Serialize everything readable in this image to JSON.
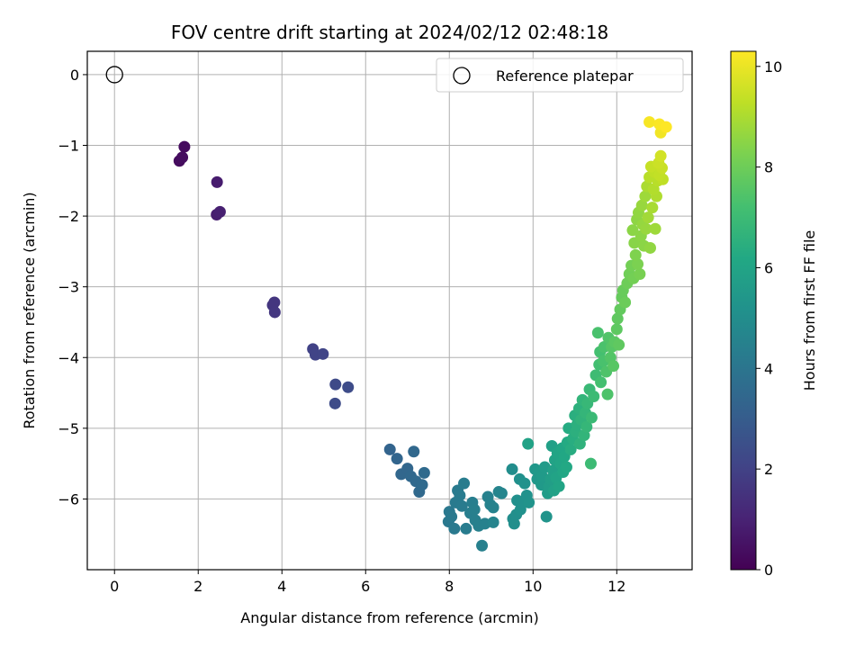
{
  "chart_data": {
    "type": "scatter",
    "title": "FOV centre drift starting at 2024/02/12 02:48:18",
    "xlabel": "Angular distance from reference (arcmin)",
    "ylabel": "Rotation from reference (arcmin)",
    "xlim": [
      -0.65,
      13.8
    ],
    "ylim": [
      -7.0,
      0.33
    ],
    "xticks": [
      0,
      2,
      4,
      6,
      8,
      10,
      12
    ],
    "yticks": [
      0,
      -1,
      -2,
      -3,
      -4,
      -5,
      -6
    ],
    "grid": true,
    "colormap": "viridis",
    "colorbar": {
      "label": "Hours from first FF file",
      "range": [
        0,
        10.3
      ],
      "ticks": [
        0,
        2,
        4,
        6,
        8,
        10
      ]
    },
    "legend": {
      "position": "top-right",
      "entries": [
        {
          "label": "Reference platepar",
          "marker": "open-circle"
        }
      ]
    },
    "reference_point": {
      "x": 0,
      "y": 0
    },
    "points": [
      {
        "x": 1.67,
        "y": -1.02,
        "c": 0.3
      },
      {
        "x": 1.55,
        "y": -1.22,
        "c": 0.3
      },
      {
        "x": 1.62,
        "y": -1.17,
        "c": 0.35
      },
      {
        "x": 2.45,
        "y": -1.52,
        "c": 0.8
      },
      {
        "x": 2.44,
        "y": -1.98,
        "c": 0.85
      },
      {
        "x": 2.52,
        "y": -1.94,
        "c": 0.9
      },
      {
        "x": 3.78,
        "y": -3.26,
        "c": 1.6
      },
      {
        "x": 3.82,
        "y": -3.22,
        "c": 1.6
      },
      {
        "x": 3.83,
        "y": -3.36,
        "c": 1.65
      },
      {
        "x": 4.74,
        "y": -3.88,
        "c": 2.0
      },
      {
        "x": 4.8,
        "y": -3.96,
        "c": 2.05
      },
      {
        "x": 4.98,
        "y": -3.95,
        "c": 2.1
      },
      {
        "x": 5.28,
        "y": -4.38,
        "c": 2.3
      },
      {
        "x": 5.58,
        "y": -4.42,
        "c": 2.35
      },
      {
        "x": 5.27,
        "y": -4.65,
        "c": 2.35
      },
      {
        "x": 6.58,
        "y": -5.3,
        "c": 3.3
      },
      {
        "x": 6.75,
        "y": -5.43,
        "c": 3.35
      },
      {
        "x": 6.85,
        "y": -5.65,
        "c": 3.4
      },
      {
        "x": 7.0,
        "y": -5.57,
        "c": 3.4
      },
      {
        "x": 7.08,
        "y": -5.68,
        "c": 3.45
      },
      {
        "x": 7.15,
        "y": -5.33,
        "c": 3.45
      },
      {
        "x": 7.2,
        "y": -5.75,
        "c": 3.5
      },
      {
        "x": 7.28,
        "y": -5.9,
        "c": 3.5
      },
      {
        "x": 7.35,
        "y": -5.8,
        "c": 3.55
      },
      {
        "x": 7.4,
        "y": -5.63,
        "c": 3.55
      },
      {
        "x": 7.98,
        "y": -6.32,
        "c": 4.1
      },
      {
        "x": 8.0,
        "y": -6.18,
        "c": 4.1
      },
      {
        "x": 8.05,
        "y": -6.25,
        "c": 4.15
      },
      {
        "x": 8.12,
        "y": -6.42,
        "c": 4.15
      },
      {
        "x": 8.15,
        "y": -6.05,
        "c": 4.2
      },
      {
        "x": 8.2,
        "y": -5.88,
        "c": 4.2
      },
      {
        "x": 8.25,
        "y": -5.95,
        "c": 4.25
      },
      {
        "x": 8.3,
        "y": -6.1,
        "c": 4.25
      },
      {
        "x": 8.35,
        "y": -5.78,
        "c": 4.3
      },
      {
        "x": 8.4,
        "y": -6.42,
        "c": 4.3
      },
      {
        "x": 8.5,
        "y": -6.2,
        "c": 4.35
      },
      {
        "x": 8.55,
        "y": -6.05,
        "c": 4.35
      },
      {
        "x": 8.6,
        "y": -6.15,
        "c": 4.4
      },
      {
        "x": 8.62,
        "y": -6.3,
        "c": 4.4
      },
      {
        "x": 8.7,
        "y": -6.38,
        "c": 4.45
      },
      {
        "x": 8.78,
        "y": -6.66,
        "c": 4.45
      },
      {
        "x": 8.85,
        "y": -6.35,
        "c": 4.5
      },
      {
        "x": 8.92,
        "y": -5.97,
        "c": 4.5
      },
      {
        "x": 8.98,
        "y": -6.08,
        "c": 4.55
      },
      {
        "x": 9.05,
        "y": -6.12,
        "c": 4.55
      },
      {
        "x": 9.05,
        "y": -6.33,
        "c": 4.6
      },
      {
        "x": 9.18,
        "y": -5.9,
        "c": 4.6
      },
      {
        "x": 9.25,
        "y": -5.92,
        "c": 4.65
      },
      {
        "x": 9.5,
        "y": -5.58,
        "c": 5.0
      },
      {
        "x": 9.52,
        "y": -6.28,
        "c": 5.0
      },
      {
        "x": 9.55,
        "y": -6.35,
        "c": 5.05
      },
      {
        "x": 9.6,
        "y": -6.22,
        "c": 5.05
      },
      {
        "x": 9.62,
        "y": -6.02,
        "c": 5.1
      },
      {
        "x": 9.68,
        "y": -5.72,
        "c": 5.1
      },
      {
        "x": 9.7,
        "y": -6.15,
        "c": 5.15
      },
      {
        "x": 9.75,
        "y": -6.05,
        "c": 5.15
      },
      {
        "x": 9.8,
        "y": -5.78,
        "c": 5.2
      },
      {
        "x": 9.85,
        "y": -5.95,
        "c": 5.2
      },
      {
        "x": 9.88,
        "y": -5.22,
        "c": 5.9
      },
      {
        "x": 9.9,
        "y": -6.05,
        "c": 5.25
      },
      {
        "x": 10.05,
        "y": -5.58,
        "c": 5.4
      },
      {
        "x": 10.1,
        "y": -5.72,
        "c": 5.45
      },
      {
        "x": 10.15,
        "y": -5.62,
        "c": 5.5
      },
      {
        "x": 10.2,
        "y": -5.8,
        "c": 5.5
      },
      {
        "x": 10.22,
        "y": -5.68,
        "c": 5.55
      },
      {
        "x": 10.28,
        "y": -5.55,
        "c": 5.6
      },
      {
        "x": 10.32,
        "y": -6.25,
        "c": 5.3
      },
      {
        "x": 10.35,
        "y": -5.92,
        "c": 5.65
      },
      {
        "x": 10.38,
        "y": -5.82,
        "c": 5.7
      },
      {
        "x": 10.42,
        "y": -5.72,
        "c": 5.75
      },
      {
        "x": 10.45,
        "y": -5.25,
        "c": 5.8
      },
      {
        "x": 10.48,
        "y": -5.6,
        "c": 5.8
      },
      {
        "x": 10.5,
        "y": -5.88,
        "c": 5.85
      },
      {
        "x": 10.52,
        "y": -5.45,
        "c": 5.9
      },
      {
        "x": 10.55,
        "y": -5.7,
        "c": 5.95
      },
      {
        "x": 10.58,
        "y": -5.35,
        "c": 6.0
      },
      {
        "x": 10.62,
        "y": -5.82,
        "c": 6.0
      },
      {
        "x": 10.65,
        "y": -5.5,
        "c": 6.05
      },
      {
        "x": 10.7,
        "y": -5.28,
        "c": 6.1
      },
      {
        "x": 10.72,
        "y": -5.62,
        "c": 6.1
      },
      {
        "x": 10.75,
        "y": -5.4,
        "c": 6.15
      },
      {
        "x": 10.8,
        "y": -5.55,
        "c": 6.2
      },
      {
        "x": 10.82,
        "y": -5.2,
        "c": 6.25
      },
      {
        "x": 10.85,
        "y": -5.0,
        "c": 6.3
      },
      {
        "x": 10.9,
        "y": -5.3,
        "c": 6.35
      },
      {
        "x": 10.95,
        "y": -5.15,
        "c": 6.4
      },
      {
        "x": 11.0,
        "y": -4.82,
        "c": 6.45
      },
      {
        "x": 11.02,
        "y": -5.05,
        "c": 6.5
      },
      {
        "x": 11.05,
        "y": -4.95,
        "c": 6.5
      },
      {
        "x": 11.1,
        "y": -4.72,
        "c": 6.55
      },
      {
        "x": 11.12,
        "y": -5.22,
        "c": 6.6
      },
      {
        "x": 11.15,
        "y": -4.88,
        "c": 6.65
      },
      {
        "x": 11.18,
        "y": -4.6,
        "c": 6.7
      },
      {
        "x": 11.22,
        "y": -5.1,
        "c": 6.7
      },
      {
        "x": 11.25,
        "y": -4.78,
        "c": 6.75
      },
      {
        "x": 11.28,
        "y": -4.98,
        "c": 6.8
      },
      {
        "x": 11.3,
        "y": -4.65,
        "c": 6.85
      },
      {
        "x": 11.35,
        "y": -4.45,
        "c": 6.9
      },
      {
        "x": 11.38,
        "y": -5.5,
        "c": 7.0
      },
      {
        "x": 11.4,
        "y": -4.85,
        "c": 6.95
      },
      {
        "x": 11.45,
        "y": -4.55,
        "c": 7.0
      },
      {
        "x": 11.5,
        "y": -4.25,
        "c": 7.05
      },
      {
        "x": 11.55,
        "y": -3.65,
        "c": 7.3
      },
      {
        "x": 11.58,
        "y": -4.1,
        "c": 7.15
      },
      {
        "x": 11.6,
        "y": -3.92,
        "c": 7.2
      },
      {
        "x": 11.62,
        "y": -4.35,
        "c": 7.2
      },
      {
        "x": 11.68,
        "y": -4.05,
        "c": 7.3
      },
      {
        "x": 11.7,
        "y": -3.85,
        "c": 7.35
      },
      {
        "x": 11.75,
        "y": -4.2,
        "c": 7.4
      },
      {
        "x": 11.78,
        "y": -4.52,
        "c": 7.4
      },
      {
        "x": 11.8,
        "y": -3.72,
        "c": 7.45
      },
      {
        "x": 11.85,
        "y": -4.0,
        "c": 7.5
      },
      {
        "x": 11.88,
        "y": -3.85,
        "c": 7.55
      },
      {
        "x": 11.92,
        "y": -4.12,
        "c": 7.6
      },
      {
        "x": 11.95,
        "y": -3.78,
        "c": 7.65
      },
      {
        "x": 12.0,
        "y": -3.6,
        "c": 7.7
      },
      {
        "x": 12.02,
        "y": -3.45,
        "c": 7.75
      },
      {
        "x": 12.05,
        "y": -3.82,
        "c": 7.75
      },
      {
        "x": 12.08,
        "y": -3.32,
        "c": 7.8
      },
      {
        "x": 12.12,
        "y": -3.15,
        "c": 7.85
      },
      {
        "x": 12.15,
        "y": -3.05,
        "c": 7.9
      },
      {
        "x": 12.2,
        "y": -3.22,
        "c": 7.95
      },
      {
        "x": 12.25,
        "y": -2.95,
        "c": 8.0
      },
      {
        "x": 12.3,
        "y": -2.82,
        "c": 8.05
      },
      {
        "x": 12.35,
        "y": -2.7,
        "c": 8.1
      },
      {
        "x": 12.38,
        "y": -2.2,
        "c": 8.5
      },
      {
        "x": 12.4,
        "y": -2.88,
        "c": 8.1
      },
      {
        "x": 12.42,
        "y": -2.38,
        "c": 8.45
      },
      {
        "x": 12.45,
        "y": -2.55,
        "c": 8.3
      },
      {
        "x": 12.48,
        "y": -2.05,
        "c": 8.55
      },
      {
        "x": 12.5,
        "y": -2.68,
        "c": 8.25
      },
      {
        "x": 12.52,
        "y": -1.95,
        "c": 8.6
      },
      {
        "x": 12.55,
        "y": -2.82,
        "c": 8.2
      },
      {
        "x": 12.58,
        "y": -2.28,
        "c": 8.5
      },
      {
        "x": 12.6,
        "y": -1.85,
        "c": 8.7
      },
      {
        "x": 12.62,
        "y": -2.12,
        "c": 8.65
      },
      {
        "x": 12.65,
        "y": -2.42,
        "c": 8.5
      },
      {
        "x": 12.68,
        "y": -1.72,
        "c": 8.8
      },
      {
        "x": 12.7,
        "y": -2.18,
        "c": 8.7
      },
      {
        "x": 12.72,
        "y": -1.58,
        "c": 9.0
      },
      {
        "x": 12.75,
        "y": -2.02,
        "c": 8.85
      },
      {
        "x": 12.78,
        "y": -1.45,
        "c": 9.2
      },
      {
        "x": 12.8,
        "y": -2.45,
        "c": 8.6
      },
      {
        "x": 12.82,
        "y": -1.3,
        "c": 9.4
      },
      {
        "x": 12.85,
        "y": -1.88,
        "c": 8.95
      },
      {
        "x": 12.88,
        "y": -1.62,
        "c": 9.1
      },
      {
        "x": 12.9,
        "y": -1.38,
        "c": 9.3
      },
      {
        "x": 12.92,
        "y": -2.18,
        "c": 8.8
      },
      {
        "x": 12.95,
        "y": -1.72,
        "c": 9.05
      },
      {
        "x": 12.98,
        "y": -1.5,
        "c": 9.2
      },
      {
        "x": 13.0,
        "y": -1.25,
        "c": 9.5
      },
      {
        "x": 13.02,
        "y": -1.42,
        "c": 9.35
      },
      {
        "x": 13.05,
        "y": -1.15,
        "c": 9.6
      },
      {
        "x": 13.08,
        "y": -1.32,
        "c": 9.45
      },
      {
        "x": 13.1,
        "y": -1.48,
        "c": 9.3
      },
      {
        "x": 12.78,
        "y": -0.67,
        "c": 10.2
      },
      {
        "x": 13.02,
        "y": -0.7,
        "c": 10.25
      },
      {
        "x": 13.05,
        "y": -0.82,
        "c": 10.1
      },
      {
        "x": 13.18,
        "y": -0.74,
        "c": 10.3
      }
    ]
  }
}
